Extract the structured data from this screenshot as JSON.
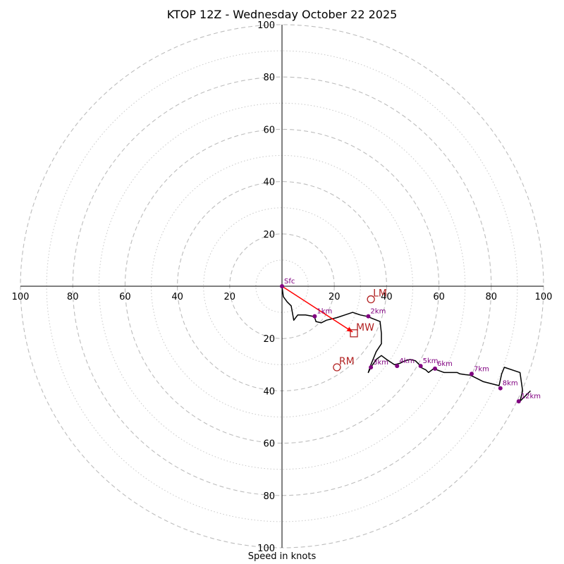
{
  "chart_data": {
    "type": "hodograph",
    "title": "KTOP 12Z - Wednesday October 22 2025",
    "xlabel": "Speed in knots",
    "rings": [
      20,
      40,
      60,
      80,
      100
    ],
    "minor_rings": [
      10,
      30,
      50,
      70,
      90
    ],
    "axis_ticks": [
      "100",
      "80",
      "60",
      "40",
      "20"
    ],
    "colors": {
      "trace": "#000000",
      "height_marker": "#800080",
      "storm_motion": "#b22222",
      "mean_wind_vector": "#ff0000",
      "ring": "#bdbdbd"
    },
    "trace": {
      "u": [
        0,
        0.5,
        2,
        3.5,
        4.5,
        6,
        9,
        12,
        12,
        12.5,
        13,
        15,
        17,
        19,
        21,
        24,
        27,
        30,
        32.5,
        35,
        37.5,
        38,
        38,
        36,
        34,
        33,
        34,
        36,
        38,
        40,
        43,
        45,
        47,
        49,
        51,
        52.5,
        53,
        55,
        56,
        58,
        62,
        67,
        68,
        70,
        72,
        77,
        83,
        84,
        85,
        91,
        92,
        91,
        92,
        93,
        94,
        95
      ],
      "v": [
        0,
        -4,
        -6,
        -7.5,
        -13,
        -11,
        -11,
        -11.5,
        -11.5,
        -12,
        -13.5,
        -14,
        -13,
        -12.5,
        -12,
        -11,
        -10,
        -11,
        -11.5,
        -12.5,
        -13.5,
        -18,
        -22,
        -25,
        -30,
        -33,
        -31,
        -28,
        -26.5,
        -28,
        -30,
        -29.5,
        -28.5,
        -28,
        -28.5,
        -30,
        -31,
        -32,
        -33,
        -31.5,
        -33,
        -33,
        -33.5,
        -33.8,
        -34,
        -36.5,
        -38,
        -33.5,
        -31,
        -33,
        -40,
        -44,
        -43,
        -42,
        -41,
        -40
      ]
    },
    "height_markers": [
      {
        "label": "Sfc",
        "u": 0,
        "v": 0
      },
      {
        "label": "1km",
        "u": 12.5,
        "v": -11.5
      },
      {
        "label": "2km",
        "u": 33,
        "v": -11.5
      },
      {
        "label": "3km",
        "u": 34,
        "v": -31
      },
      {
        "label": "4km",
        "u": 44,
        "v": -30.5
      },
      {
        "label": "5km",
        "u": 53,
        "v": -30.5
      },
      {
        "label": "6km",
        "u": 58.5,
        "v": -31.5
      },
      {
        "label": "7km",
        "u": 72.5,
        "v": -33.5
      },
      {
        "label": "8km",
        "u": 83.5,
        "v": -39
      },
      {
        "label": "12km",
        "u": 90.5,
        "v": -44
      }
    ],
    "storm_motions": [
      {
        "label": "LM",
        "u": 34,
        "v": -5,
        "marker": "circle"
      },
      {
        "label": "MW",
        "u": 27.5,
        "v": -18,
        "marker": "square"
      },
      {
        "label": "RM",
        "u": 21,
        "v": -31,
        "marker": "circle"
      }
    ],
    "mean_wind_vector": {
      "u": 27,
      "v": -17.5
    }
  }
}
